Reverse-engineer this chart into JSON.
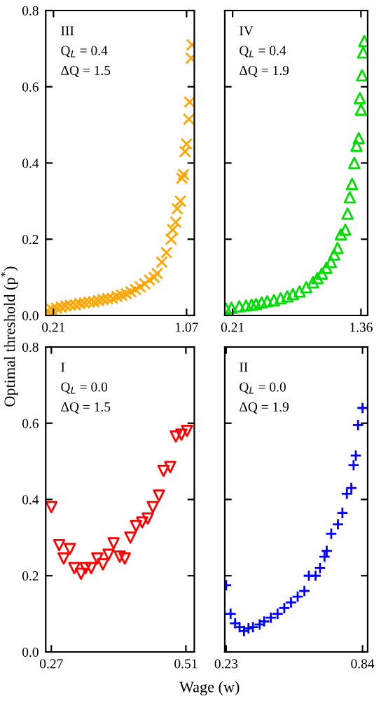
{
  "chart_data": [
    {
      "type": "scatter",
      "ylabel": "Optimal threshold (p$^{*}$)",
      "annotations": [
        "III",
        "Q$_{L}$ = 0.4",
        "ΔQ = 1.5"
      ],
      "marker": "cross",
      "xlim": [
        0.16,
        1.12
      ],
      "xticks": [
        0.21,
        1.07
      ],
      "ylim": [
        0,
        0.8
      ],
      "yticks": [
        {
          "value": 0,
          "label": "0.0"
        },
        0.2,
        0.4,
        0.6,
        0.8
      ],
      "x": [
        0.17,
        0.2,
        0.23,
        0.26,
        0.29,
        0.32,
        0.35,
        0.38,
        0.41,
        0.44,
        0.47,
        0.5,
        0.53,
        0.56,
        0.59,
        0.62,
        0.65,
        0.68,
        0.71,
        0.74,
        0.77,
        0.8,
        0.83,
        0.86,
        0.88,
        0.91,
        0.94,
        0.97,
        0.98,
        1.0,
        1.01,
        1.03,
        1.04,
        1.05,
        1.06,
        1.07,
        1.085,
        1.09,
        1.1,
        1.105
      ],
      "series": [
        {
          "color": "#ffa500",
          "values": [
            0.012,
            0.016,
            0.019,
            0.022,
            0.025,
            0.027,
            0.028,
            0.031,
            0.033,
            0.035,
            0.036,
            0.039,
            0.042,
            0.044,
            0.045,
            0.05,
            0.053,
            0.057,
            0.062,
            0.068,
            0.075,
            0.083,
            0.093,
            0.1,
            0.11,
            0.14,
            0.165,
            0.2,
            0.225,
            0.245,
            0.28,
            0.3,
            0.36,
            0.37,
            0.43,
            0.45,
            0.515,
            0.56,
            0.675,
            0.71
          ]
        }
      ]
    },
    {
      "type": "scatter",
      "annotations": [
        "IV",
        "Q$_{L}$ = 0.4",
        "ΔQ = 1.9"
      ],
      "marker": "triangle",
      "tick_labels": "x",
      "xlim": [
        0.14,
        1.42
      ],
      "xticks": [
        0.21,
        1.36
      ],
      "ylim": [
        0,
        0.8
      ],
      "yticks": [
        0.0,
        0.2,
        0.4,
        0.6,
        0.8
      ],
      "x": [
        0.15,
        0.2,
        0.27,
        0.33,
        0.38,
        0.42,
        0.47,
        0.52,
        0.58,
        0.64,
        0.7,
        0.75,
        0.81,
        0.87,
        0.93,
        0.97,
        1.01,
        1.05,
        1.09,
        1.12,
        1.15,
        1.18,
        1.22,
        1.24,
        1.26,
        1.28,
        1.3,
        1.32,
        1.34,
        1.35,
        1.36,
        1.37,
        1.38,
        1.39
      ],
      "series": [
        {
          "color": "#00dd00",
          "values": [
            0.018,
            0.02,
            0.024,
            0.026,
            0.028,
            0.03,
            0.034,
            0.037,
            0.04,
            0.045,
            0.05,
            0.056,
            0.063,
            0.074,
            0.087,
            0.098,
            0.11,
            0.125,
            0.14,
            0.16,
            0.177,
            0.213,
            0.225,
            0.267,
            0.31,
            0.345,
            0.4,
            0.445,
            0.465,
            0.57,
            0.54,
            0.63,
            0.69,
            0.72
          ]
        }
      ]
    },
    {
      "type": "scatter",
      "xlabel": "Wage (w)",
      "annotations": [
        "I",
        "Q$_{L}$ = 0.0",
        "ΔQ = 1.5"
      ],
      "marker": "triangle_down",
      "xlim": [
        0.26,
        0.525
      ],
      "xticks": [
        0.27,
        0.51
      ],
      "ylim": [
        0,
        0.8
      ],
      "yticks": [
        {
          "value": 0,
          "label": "0.0"
        },
        0.2,
        0.4,
        0.6,
        0.8
      ],
      "x": [
        0.27,
        0.284,
        0.292,
        0.303,
        0.311,
        0.323,
        0.331,
        0.341,
        0.352,
        0.362,
        0.372,
        0.381,
        0.392,
        0.401,
        0.411,
        0.421,
        0.432,
        0.442,
        0.451,
        0.462,
        0.47,
        0.482,
        0.492,
        0.502,
        0.512
      ],
      "series": [
        {
          "color": "#ff0000",
          "values": [
            0.38,
            0.28,
            0.245,
            0.27,
            0.22,
            0.205,
            0.22,
            0.22,
            0.245,
            0.23,
            0.255,
            0.285,
            0.25,
            0.245,
            0.3,
            0.33,
            0.34,
            0.35,
            0.38,
            0.41,
            0.475,
            0.485,
            0.565,
            0.57,
            0.58
          ]
        }
      ]
    },
    {
      "type": "scatter",
      "annotations": [
        "II",
        "Q$_{L}$ = 0.0",
        "ΔQ = 1.9"
      ],
      "marker": "plus",
      "tick_labels": "x",
      "xlim": [
        0.224,
        0.863
      ],
      "xticks": [
        0.23,
        0.84
      ],
      "ylim": [
        0,
        0.8
      ],
      "yticks": [
        0.0,
        0.2,
        0.4,
        0.6,
        0.8
      ],
      "x": [
        0.23,
        0.25,
        0.27,
        0.29,
        0.31,
        0.33,
        0.35,
        0.38,
        0.4,
        0.43,
        0.46,
        0.49,
        0.52,
        0.55,
        0.58,
        0.6,
        0.63,
        0.65,
        0.67,
        0.68,
        0.7,
        0.73,
        0.75,
        0.77,
        0.79,
        0.8,
        0.81,
        0.82,
        0.84
      ],
      "series": [
        {
          "color": "#0000ff",
          "values": [
            0.175,
            0.1,
            0.075,
            0.065,
            0.055,
            0.062,
            0.065,
            0.072,
            0.08,
            0.09,
            0.1,
            0.115,
            0.13,
            0.145,
            0.16,
            0.2,
            0.2,
            0.22,
            0.25,
            0.265,
            0.31,
            0.335,
            0.365,
            0.415,
            0.43,
            0.49,
            0.515,
            0.595,
            0.64
          ]
        }
      ]
    }
  ]
}
